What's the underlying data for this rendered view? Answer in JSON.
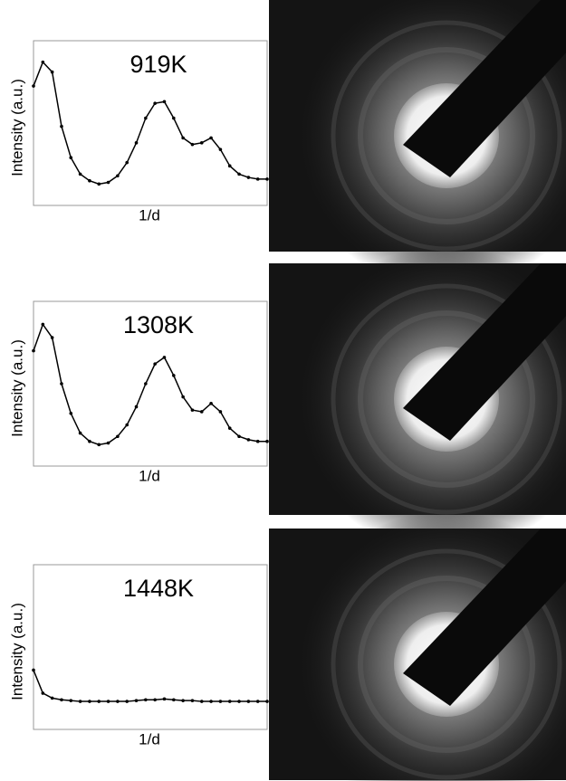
{
  "chart_data": [
    {
      "type": "line",
      "title": "919K",
      "xlabel": "1/d",
      "ylabel": "Intensity (a.u.)",
      "color": "#000000",
      "xlim": [
        0,
        100
      ],
      "ylim": [
        0,
        100
      ],
      "x": [
        0,
        4,
        8,
        12,
        16,
        20,
        24,
        28,
        32,
        36,
        40,
        44,
        48,
        52,
        56,
        60,
        64,
        68,
        72,
        76,
        80,
        84,
        88,
        92,
        96,
        100
      ],
      "values": [
        72.5,
        87,
        81,
        48,
        29,
        19,
        15,
        13,
        14,
        18,
        26,
        38,
        53,
        62,
        63,
        53,
        41,
        37,
        38,
        41,
        34,
        24,
        19,
        17,
        16,
        16
      ]
    },
    {
      "type": "line",
      "title": "1308K",
      "xlabel": "1/d",
      "ylabel": "Intensity (a.u.)",
      "color": "#000000",
      "xlim": [
        0,
        100
      ],
      "ylim": [
        0,
        100
      ],
      "x": [
        0,
        4,
        8,
        12,
        16,
        20,
        24,
        28,
        32,
        36,
        40,
        44,
        48,
        52,
        56,
        60,
        64,
        68,
        72,
        76,
        80,
        84,
        88,
        92,
        96,
        100
      ],
      "values": [
        70,
        86,
        78,
        50,
        32,
        20,
        15,
        13,
        14,
        18,
        25,
        36,
        50,
        62,
        66,
        55,
        42,
        34,
        33,
        38,
        33,
        23,
        18,
        16,
        15,
        15
      ]
    },
    {
      "type": "line",
      "title": "1448K",
      "xlabel": "1/d",
      "ylabel": "Intensity (a.u.)",
      "color": "#000000",
      "xlim": [
        0,
        100
      ],
      "ylim": [
        0,
        100
      ],
      "x": [
        0,
        4,
        8,
        12,
        16,
        20,
        24,
        28,
        32,
        36,
        40,
        44,
        48,
        52,
        56,
        60,
        64,
        68,
        72,
        76,
        80,
        84,
        88,
        92,
        96,
        100
      ],
      "values": [
        36,
        22,
        19,
        18,
        17.5,
        17,
        17,
        17,
        17,
        17,
        17,
        17.5,
        18,
        18,
        18.5,
        18,
        17.5,
        17.5,
        17,
        17,
        17,
        17,
        17,
        17,
        17,
        17
      ]
    }
  ]
}
